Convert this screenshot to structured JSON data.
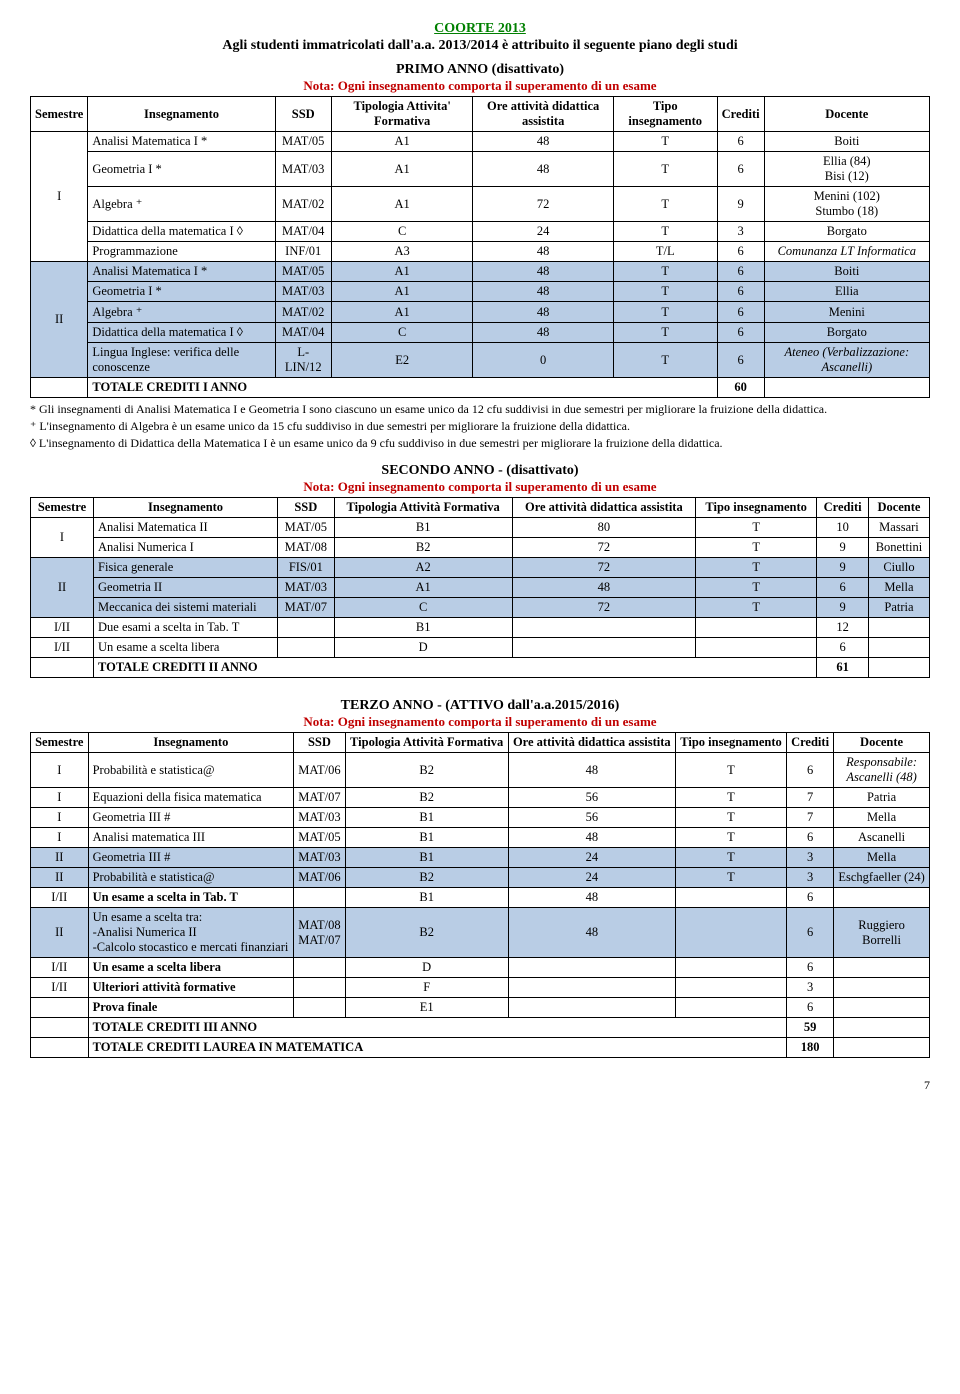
{
  "header": {
    "coorte": "COORTE 2013",
    "subtitle": "Agli studenti immatricolati dall'a.a. 2013/2014 è attribuito il seguente piano degli studi"
  },
  "nota_global": "Nota: Ogni insegnamento comporta il superamento di un esame",
  "columns": {
    "semestre": "Semestre",
    "insegnamento": "Insegnamento",
    "ssd": "SSD",
    "tipologia1": "Tipologia Attivita' Formativa",
    "tipologia2": "Tipologia Attività Formativa",
    "ore": "Ore attività didattica assistita",
    "tipo": "Tipo insegnamento",
    "crediti": "Crediti",
    "docente": "Docente"
  },
  "primo": {
    "title": "PRIMO ANNO (disattivato)",
    "rows": [
      {
        "sem": "I",
        "sem_rowspan": 5,
        "shade": false,
        "ins": "Analisi Matematica I *",
        "ssd": "MAT/05",
        "tip": "A1",
        "ore": "48",
        "tipo": "T",
        "cred": "6",
        "doc": "Boiti"
      },
      {
        "shade": false,
        "ins": "Geometria I *",
        "ssd": "MAT/03",
        "tip": "A1",
        "ore": "48",
        "tipo": "T",
        "cred": "6",
        "doc": "Ellia (84)\nBisi (12)"
      },
      {
        "shade": false,
        "ins": "Algebra ⁺",
        "ssd": "MAT/02",
        "tip": "A1",
        "ore": "72",
        "tipo": "T",
        "cred": "9",
        "doc": "Menini (102)\nStumbo (18)"
      },
      {
        "shade": false,
        "ins": "Didattica della matematica I ◊",
        "ssd": "MAT/04",
        "tip": "C",
        "ore": "24",
        "tipo": "T",
        "cred": "3",
        "doc": "Borgato"
      },
      {
        "shade": false,
        "ins": "Programmazione",
        "ssd": "INF/01",
        "tip": "A3",
        "ore": "48",
        "tipo": "T/L",
        "cred": "6",
        "doc": "Comunanza LT Informatica",
        "doc_ital": true
      },
      {
        "sem": "II",
        "sem_rowspan": 5,
        "shade": true,
        "ins": "Analisi Matematica I *",
        "ssd": "MAT/05",
        "tip": "A1",
        "ore": "48",
        "tipo": "T",
        "cred": "6",
        "doc": "Boiti"
      },
      {
        "shade": true,
        "ins": "Geometria I *",
        "ssd": "MAT/03",
        "tip": "A1",
        "ore": "48",
        "tipo": "T",
        "cred": "6",
        "doc": "Ellia"
      },
      {
        "shade": true,
        "ins": "Algebra ⁺",
        "ssd": "MAT/02",
        "tip": "A1",
        "ore": "48",
        "tipo": "T",
        "cred": "6",
        "doc": "Menini"
      },
      {
        "shade": true,
        "ins": "Didattica della matematica I ◊",
        "ssd": "MAT/04",
        "tip": "C",
        "ore": "48",
        "tipo": "T",
        "cred": "6",
        "doc": "Borgato"
      },
      {
        "shade": true,
        "ins": "Lingua Inglese: verifica delle conoscenze",
        "ssd": "L-LIN/12",
        "tip": "E2",
        "ore": "0",
        "tipo": "T",
        "cred": "6",
        "doc": "Ateneo (Verbalizzazione: Ascanelli)",
        "doc_ital": true
      }
    ],
    "total_label": "TOTALE CREDITI I ANNO",
    "total_value": "60",
    "notes": [
      "* Gli insegnamenti di Analisi Matematica I e Geometria I sono ciascuno un esame unico da 12 cfu suddivisi in due semestri per migliorare la fruizione della didattica.",
      "⁺ L'insegnamento di Algebra è un esame unico da 15 cfu suddiviso in due semestri per migliorare la fruizione della didattica.",
      "◊ L'insegnamento di Didattica della Matematica I è un esame unico da 9 cfu suddiviso in due semestri per migliorare la fruizione della didattica."
    ]
  },
  "secondo": {
    "title": "SECONDO ANNO  - (disattivato)",
    "rows": [
      {
        "sem": "I",
        "sem_rowspan": 2,
        "shade": false,
        "ins": "Analisi Matematica II",
        "ssd": "MAT/05",
        "tip": "B1",
        "ore": "80",
        "tipo": "T",
        "cred": "10",
        "doc": "Massari"
      },
      {
        "shade": false,
        "ins": "Analisi Numerica I",
        "ssd": "MAT/08",
        "tip": "B2",
        "ore": "72",
        "tipo": "T",
        "cred": "9",
        "doc": "Bonettini"
      },
      {
        "sem": "II",
        "sem_rowspan": 3,
        "shade": true,
        "ins": "Fisica generale",
        "ssd": "FIS/01",
        "tip": "A2",
        "ore": "72",
        "tipo": "T",
        "cred": "9",
        "doc": "Ciullo"
      },
      {
        "shade": true,
        "ins": "Geometria II",
        "ssd": "MAT/03",
        "tip": "A1",
        "ore": "48",
        "tipo": "T",
        "cred": "6",
        "doc": "Mella"
      },
      {
        "shade": true,
        "ins": "Meccanica dei sistemi materiali",
        "ssd": "MAT/07",
        "tip": "C",
        "ore": "72",
        "tipo": "T",
        "cred": "9",
        "doc": "Patria"
      },
      {
        "sem": "I/II",
        "sem_rowspan": 1,
        "shade": false,
        "ins": "Due esami a scelta in Tab. T",
        "ssd": "",
        "tip": "B1",
        "ore": "",
        "tipo": "",
        "cred": "12",
        "doc": ""
      },
      {
        "sem": "I/II",
        "sem_rowspan": 1,
        "shade": false,
        "ins": "Un esame a scelta libera",
        "ssd": "",
        "tip": "D",
        "ore": "",
        "tipo": "",
        "cred": "6",
        "doc": ""
      }
    ],
    "total_label": "TOTALE CREDITI II ANNO",
    "total_value": "61"
  },
  "terzo": {
    "title": "TERZO ANNO - (ATTIVO dall'a.a.2015/2016)",
    "rows": [
      {
        "sem": "I",
        "shade": false,
        "ins": "Probabilità e statistica@",
        "ssd": "MAT/06",
        "tip": "B2",
        "ore": "48",
        "tipo": "T",
        "cred": "6",
        "doc": "Responsabile:\nAscanelli (48)",
        "doc_ital": true
      },
      {
        "sem": "I",
        "shade": false,
        "ins": "Equazioni della fisica matematica",
        "ssd": "MAT/07",
        "tip": "B2",
        "ore": "56",
        "tipo": "T",
        "cred": "7",
        "doc": "Patria"
      },
      {
        "sem": "I",
        "shade": false,
        "ins": "Geometria III #",
        "ssd": "MAT/03",
        "tip": "B1",
        "ore": "56",
        "tipo": "T",
        "cred": "7",
        "doc": "Mella"
      },
      {
        "sem": "I",
        "shade": false,
        "ins": "Analisi matematica III",
        "ssd": "MAT/05",
        "tip": "B1",
        "ore": "48",
        "tipo": "T",
        "cred": "6",
        "doc": "Ascanelli"
      },
      {
        "sem": "II",
        "shade": true,
        "ins": "Geometria III #",
        "ssd": "MAT/03",
        "tip": "B1",
        "ore": "24",
        "tipo": "T",
        "cred": "3",
        "doc": "Mella"
      },
      {
        "sem": "II",
        "shade": true,
        "ins": "Probabilità e statistica@",
        "ssd": "MAT/06",
        "tip": "B2",
        "ore": "24",
        "tipo": "T",
        "cred": "3",
        "doc": "Eschgfaeller (24)"
      },
      {
        "sem": "I/II",
        "shade": false,
        "ins": "Un esame a scelta in Tab. T",
        "ins_bold": true,
        "ssd": "",
        "tip": "B1",
        "ore": "48",
        "tipo": "",
        "cred": "6",
        "doc": ""
      },
      {
        "sem": "II",
        "shade": true,
        "ins": "Un esame a scelta tra:\n-Analisi Numerica II\n-Calcolo stocastico e mercati finanziari",
        "ssd": "MAT/08\nMAT/07",
        "tip": "B2",
        "ore": "48",
        "tipo": "",
        "cred": "6",
        "doc": "Ruggiero\nBorrelli"
      },
      {
        "sem": "I/II",
        "shade": false,
        "ins": "Un esame  a scelta libera",
        "ins_bold": true,
        "ssd": "",
        "tip": "D",
        "ore": "",
        "tipo": "",
        "cred": "6",
        "doc": ""
      },
      {
        "sem": "I/II",
        "shade": false,
        "ins": "Ulteriori attività formative",
        "ins_bold": true,
        "ssd": "",
        "tip": "F",
        "ore": "",
        "tipo": "",
        "cred": "3",
        "doc": ""
      },
      {
        "sem": "",
        "shade": false,
        "ins": "Prova finale",
        "ins_bold": true,
        "ssd": "",
        "tip": "E1",
        "ore": "",
        "tipo": "",
        "cred": "6",
        "doc": ""
      }
    ],
    "total_label": "TOTALE CREDITI III ANNO",
    "total_value": "59",
    "grand_label": "TOTALE CREDITI LAUREA IN MATEMATICA",
    "grand_value": "180"
  },
  "pagenum": "7"
}
